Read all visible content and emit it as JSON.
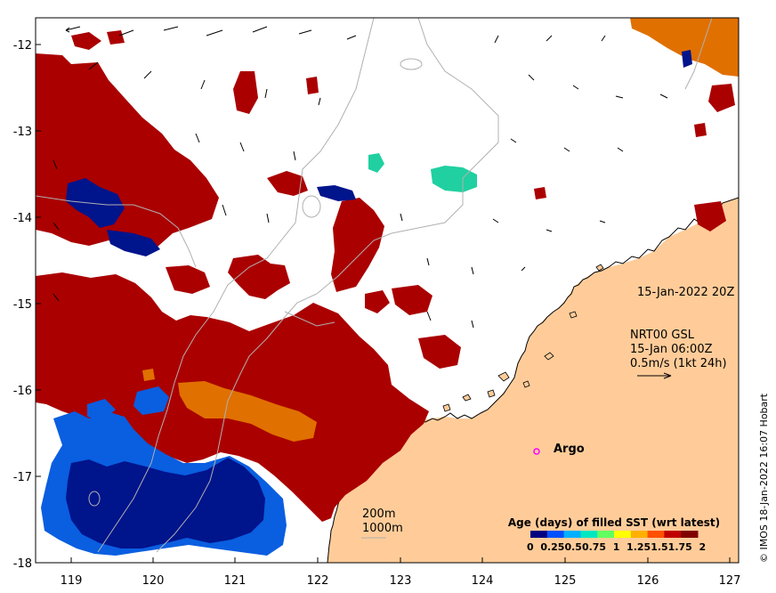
{
  "map": {
    "timestamp": "15-Jan-2022 20Z",
    "current_product": "NRT00 GSL",
    "current_time": "15-Jan 06:00Z",
    "scale_label": "0.5m/s (1kt 24h)",
    "argo_label": "Argo",
    "contour_200": "200m",
    "contour_1000": "1000m",
    "credit": "© IMOS 18-Jan-2022 16:07 Hobart",
    "x_ticks": [
      "119",
      "120",
      "121",
      "122",
      "123",
      "124",
      "125",
      "126",
      "127"
    ],
    "y_ticks": [
      "-12",
      "-13",
      "-14",
      "-15",
      "-16",
      "-17",
      "-18"
    ]
  },
  "legend": {
    "title": "Age (days) of filled SST (wrt latest)",
    "tick_labels": "0  0.250.50.75  1  1.251.51.75  2",
    "colors": [
      "#000080",
      "#0050ff",
      "#00b0ff",
      "#00e8c0",
      "#60ff60",
      "#ffff00",
      "#ffb000",
      "#ff5000",
      "#c00000",
      "#800000"
    ]
  },
  "colors": {
    "land": "#ffcc99",
    "sst_old": "#aa0000",
    "sst_navy": "#00148c",
    "sst_blue": "#0a5ee0",
    "sst_orange": "#e07000",
    "sst_teal": "#20d0a0",
    "argo": "#ff00ff"
  }
}
